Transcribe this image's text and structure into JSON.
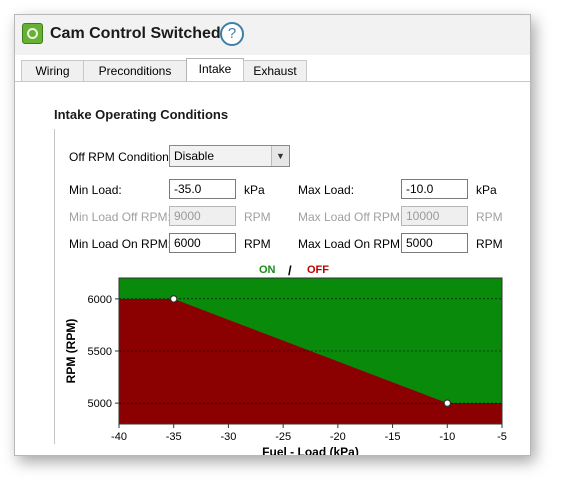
{
  "window": {
    "title": "Cam Control Switched"
  },
  "tabs": [
    {
      "label": "Wiring",
      "active": false
    },
    {
      "label": "Preconditions",
      "active": false
    },
    {
      "label": "Intake",
      "active": true
    },
    {
      "label": "Exhaust",
      "active": false
    }
  ],
  "section": {
    "title": "Intake Operating Conditions"
  },
  "off_rpm": {
    "label": "Off RPM Condition",
    "value": "Disable"
  },
  "min_load": {
    "label": "Min Load:",
    "value": "-35.0",
    "unit": "kPa"
  },
  "max_load": {
    "label": "Max Load:",
    "value": "-10.0",
    "unit": "kPa"
  },
  "min_load_off_rpm": {
    "label": "Min Load Off RPM:",
    "value": "9000",
    "unit": "RPM"
  },
  "max_load_off_rpm": {
    "label": "Max Load Off RPM:",
    "value": "10000",
    "unit": "RPM"
  },
  "min_load_on_rpm": {
    "label": "Min Load On RPM:",
    "value": "6000",
    "unit": "RPM"
  },
  "max_load_on_rpm": {
    "label": "Max Load On RPM:",
    "value": "5000",
    "unit": "RPM"
  },
  "legend": {
    "on": "ON",
    "separator": "/",
    "off": "OFF"
  },
  "colors": {
    "on": "#0a8a0a",
    "off": "#8b0000",
    "accent": "#3d7fa6"
  },
  "chart_data": {
    "type": "area",
    "xlabel": "Fuel - Load (kPa)",
    "ylabel": "RPM (RPM)",
    "xlim": [
      -40,
      -5
    ],
    "ylim": [
      4800,
      6200
    ],
    "xticks": [
      -40,
      -35,
      -30,
      -25,
      -20,
      -15,
      -10,
      -5
    ],
    "yticks": [
      5000,
      5500,
      6000
    ],
    "grid": "dashed horizontal",
    "boundary": [
      [
        -40,
        6000
      ],
      [
        -35,
        6000
      ],
      [
        -10,
        5000
      ],
      [
        -5,
        5000
      ]
    ],
    "points": [
      [
        -35,
        6000
      ],
      [
        -10,
        5000
      ]
    ],
    "regions": {
      "above": "ON",
      "below": "OFF"
    }
  }
}
